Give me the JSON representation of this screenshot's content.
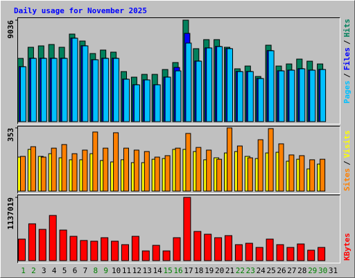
{
  "chart_data": [
    {
      "type": "bar",
      "title": "Daily usage for November 2025",
      "categories": [
        "1",
        "2",
        "3",
        "4",
        "5",
        "6",
        "7",
        "8",
        "9",
        "10",
        "11",
        "12",
        "13",
        "14",
        "15",
        "16",
        "17",
        "18",
        "19",
        "20",
        "21",
        "22",
        "23",
        "24",
        "25",
        "26",
        "27",
        "28",
        "29",
        "30",
        "31"
      ],
      "category_colors": [
        "#008000",
        "#008000",
        "#000000",
        "#000000",
        "#000000",
        "#000000",
        "#000000",
        "#008000",
        "#008000",
        "#000000",
        "#000000",
        "#000000",
        "#000000",
        "#000000",
        "#008000",
        "#008000",
        "#000000",
        "#000000",
        "#000000",
        "#000000",
        "#000000",
        "#008000",
        "#008000",
        "#000000",
        "#000000",
        "#000000",
        "#000000",
        "#000000",
        "#008000",
        "#008000",
        "#000000"
      ],
      "legend_separator": "/",
      "ylim": [
        0,
        9036
      ],
      "yticks": [
        9036
      ],
      "series": [
        {
          "name": "Hits",
          "color": "#00805c",
          "values": [
            5632,
            6622,
            6746,
            6870,
            6622,
            7798,
            7179,
            6065,
            6375,
            6189,
            4456,
            3961,
            4209,
            4209,
            4642,
            5261,
            9036,
            6498,
            7303,
            7303,
            6622,
            4704,
            4951,
            4023,
            6808,
            4951,
            5137,
            5570,
            5384,
            5137,
            null
          ]
        },
        {
          "name": "Files",
          "color": "#0000ff",
          "values": [
            4900,
            5650,
            5650,
            5650,
            5650,
            7440,
            6760,
            5520,
            5650,
            5650,
            3790,
            3290,
            3720,
            3290,
            3970,
            4827,
            7860,
            5400,
            6570,
            6700,
            6510,
            4470,
            4470,
            3850,
            6330,
            4530,
            4590,
            4720,
            4590,
            4650,
            null
          ]
        },
        {
          "name": "Pages",
          "color": "#00c0ff",
          "values": [
            4889,
            5632,
            5632,
            5632,
            5632,
            7427,
            6746,
            5508,
            5632,
            5632,
            3775,
            3280,
            3713,
            3280,
            3961,
            4518,
            6994,
            5384,
            6560,
            6684,
            6498,
            4456,
            4456,
            3837,
            6313,
            4518,
            4580,
            4704,
            4580,
            4642,
            null
          ]
        }
      ]
    },
    {
      "type": "bar",
      "legend_separator": "/",
      "ylim": [
        0,
        353
      ],
      "yticks": [
        353
      ],
      "series": [
        {
          "name": "Visits",
          "color": "#ffff00",
          "values": [
            190,
            233,
            194,
            209,
            186,
            175,
            175,
            209,
            171,
            163,
            175,
            159,
            159,
            178,
            182,
            233,
            233,
            221,
            175,
            186,
            213,
            221,
            194,
            182,
            213,
            217,
            167,
            178,
            124,
            151,
            null
          ]
        },
        {
          "name": "Sites",
          "color": "#ff8000",
          "values": [
            194,
            248,
            190,
            240,
            260,
            209,
            229,
            330,
            240,
            326,
            240,
            229,
            221,
            190,
            198,
            240,
            322,
            244,
            229,
            178,
            353,
            252,
            186,
            287,
            349,
            264,
            202,
            198,
            175,
            178,
            null
          ]
        }
      ]
    },
    {
      "type": "bar",
      "ylim": [
        0,
        1137019
      ],
      "yticks": [
        1137019
      ],
      "series": [
        {
          "name": "KBytes",
          "color": "#ff0000",
          "values": [
            387335,
            662235,
            562275,
            812175,
            549780,
            437325,
            362355,
            349860,
            412335,
            349860,
            287385,
            437325,
            174930,
            274890,
            174930,
            412335,
            1137019,
            524790,
            474810,
            412335,
            449820,
            287385,
            312375,
            237405,
            387335,
            287385,
            237405,
            299880,
            187425,
            237405,
            null
          ]
        }
      ]
    }
  ]
}
